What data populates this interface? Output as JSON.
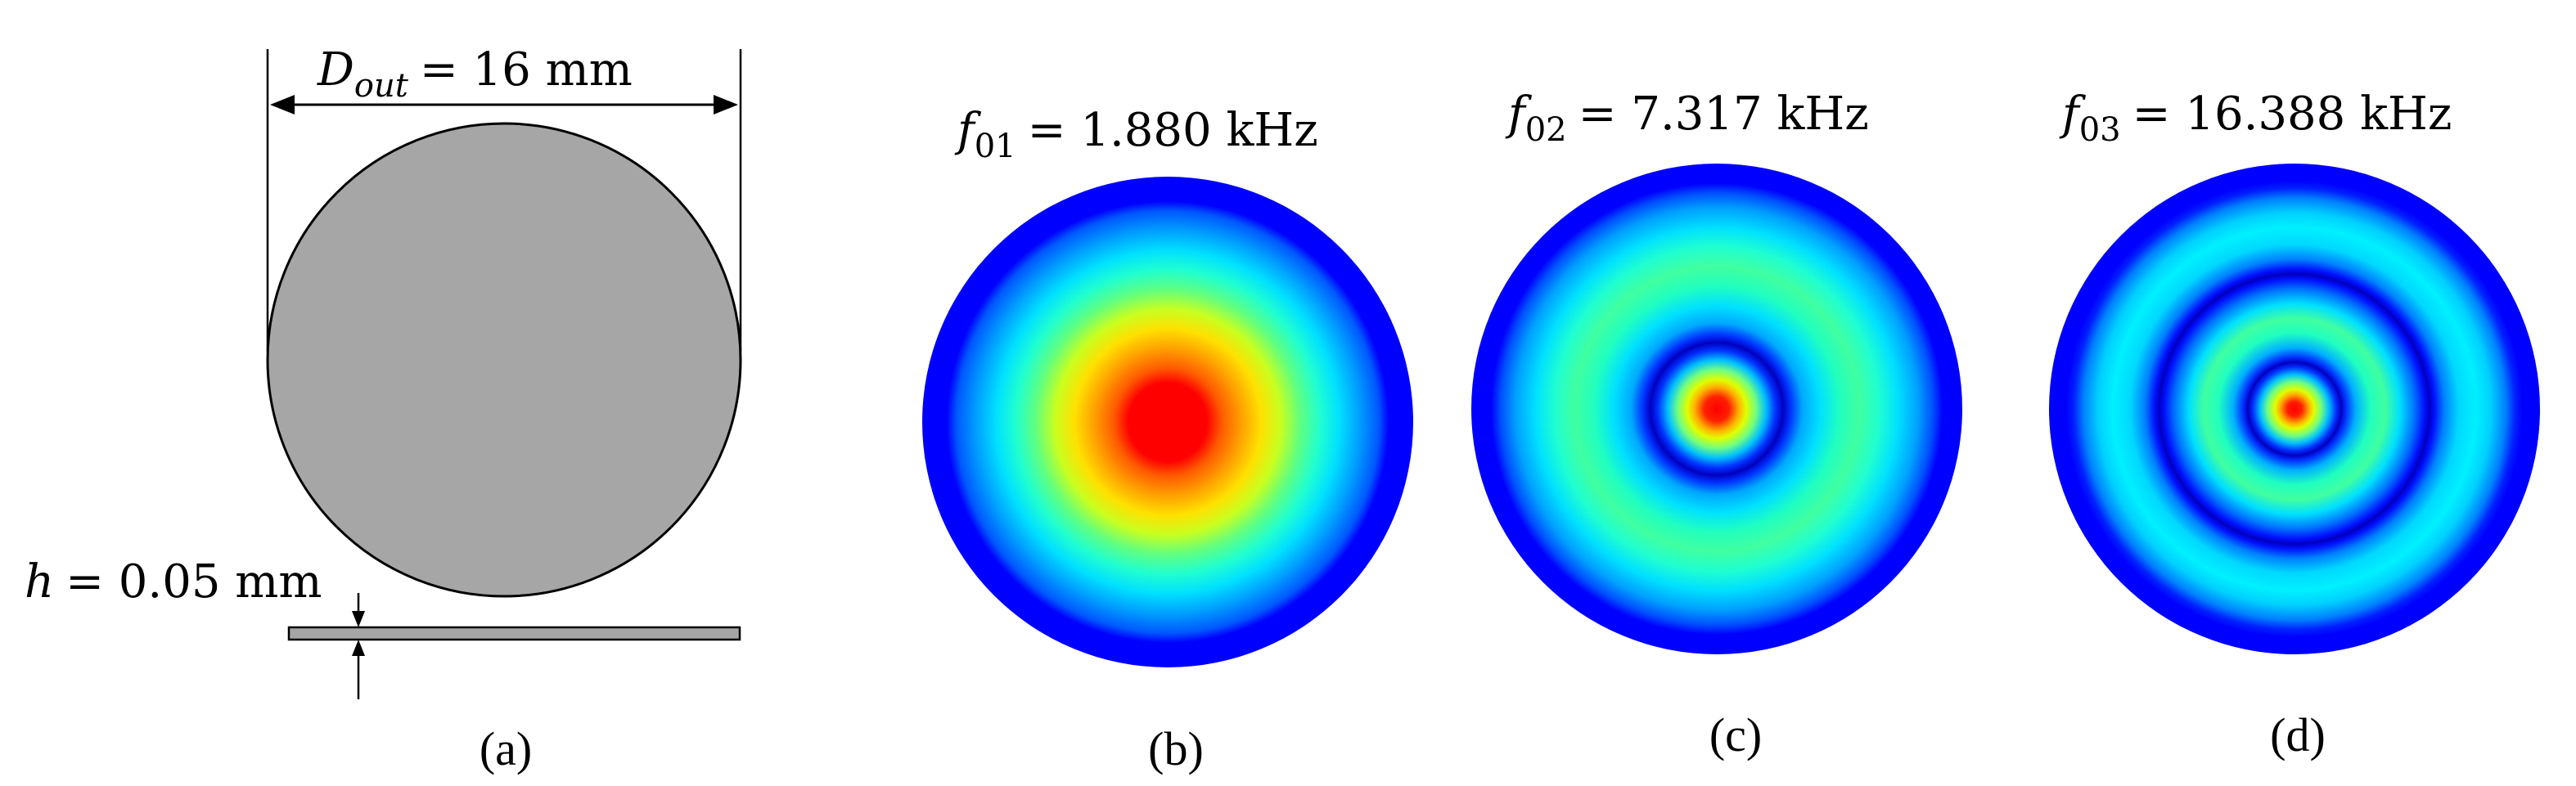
{
  "panel_a": {
    "diameter": {
      "symbol": "D",
      "subscript": "out",
      "value": "= 16 mm"
    },
    "thickness": {
      "symbol": "h",
      "value": "= 0.05 mm"
    },
    "label": "(a)",
    "colors": {
      "disk_fill": "#a6a6a6",
      "outline": "#000000"
    }
  },
  "modes": [
    {
      "symbol": "f",
      "subscript": "01",
      "value": "= 1.880 kHz",
      "label": "(b)",
      "rings": [
        "#0000ff",
        "#0038ff",
        "#0070ff",
        "#00a8ff",
        "#00e0ff",
        "#40ffbf",
        "#80ff80",
        "#b0ff40",
        "#e0ff00",
        "#ffd000",
        "#ff9000",
        "#ff5000",
        "#ff0000"
      ]
    },
    {
      "symbol": "f",
      "subscript": "02",
      "value": "= 7.317 kHz",
      "label": "(c)"
    },
    {
      "symbol": "f",
      "subscript": "03",
      "value": "= 16.388 kHz",
      "label": "(d)"
    }
  ]
}
